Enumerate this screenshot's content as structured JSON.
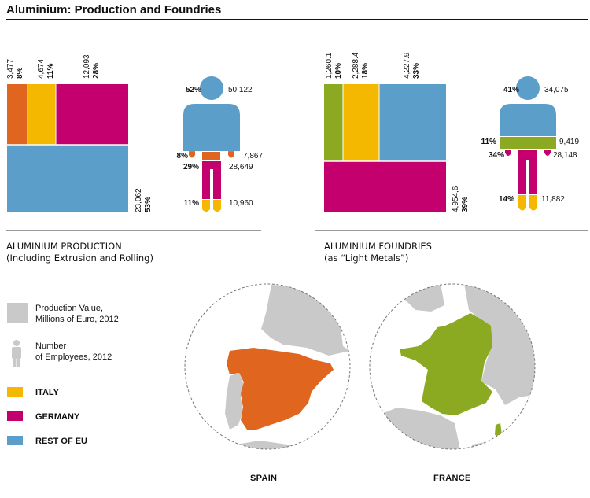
{
  "title": "Aluminium: Production and Foundries",
  "colors": {
    "italy": "#F5B800",
    "germany": "#C4006F",
    "rest_eu": "#5B9EC9",
    "spain": "#E0651E",
    "france": "#8BAA22",
    "grey": "#C9C9C9",
    "neutral": "#d0d0d0"
  },
  "panels": {
    "production": {
      "heading": "ALUMINIUM PRODUCTION",
      "subheading": "(Including Extrusion and Rolling)"
    },
    "foundries": {
      "heading": "ALUMINIUM FOUNDRIES",
      "subheading": "(as “Light Metals”)"
    }
  },
  "legend": {
    "production_value": "Production Value,\nMillions of Euro, 2012",
    "employees": "Number\nof Employees, 2012",
    "italy": "ITALY",
    "germany": "GERMANY",
    "rest_eu": "REST OF EU"
  },
  "maps": {
    "spain_label": "SPAIN",
    "france_label": "FRANCE"
  },
  "chart_data": [
    {
      "type": "treemap",
      "title": "ALUMINIUM PRODUCTION",
      "subtitle": "(Including Extrusion and Rolling)",
      "series": [
        {
          "name": "SPAIN",
          "value": "3,477",
          "share": "8%",
          "value_num": 3477,
          "color": "#E0651E"
        },
        {
          "name": "ITALY",
          "value": "4,674",
          "share": "11%",
          "value_num": 4674,
          "color": "#F5B800"
        },
        {
          "name": "GERMANY",
          "value": "12,093",
          "share": "28%",
          "value_num": 12093,
          "color": "#C4006F"
        },
        {
          "name": "REST OF EU",
          "value": "23,062",
          "share": "53%",
          "value_num": 23062,
          "color": "#5B9EC9"
        }
      ],
      "employees": [
        {
          "name": "REST OF EU",
          "share": "52%",
          "count": "50,122",
          "color": "#5B9EC9"
        },
        {
          "name": "SPAIN",
          "share": "8%",
          "count": "7,867",
          "color": "#E0651E"
        },
        {
          "name": "GERMANY",
          "share": "29%",
          "count": "28,649",
          "color": "#C4006F"
        },
        {
          "name": "ITALY",
          "share": "11%",
          "count": "10,960",
          "color": "#F5B800"
        }
      ]
    },
    {
      "type": "treemap",
      "title": "ALUMINIUM FOUNDRIES",
      "subtitle": "(as “Light Metals”)",
      "series": [
        {
          "name": "FRANCE",
          "value": "1,260.1",
          "share": "10%",
          "value_num": 1260.1,
          "color": "#8BAA22"
        },
        {
          "name": "ITALY",
          "value": "2,288.4",
          "share": "18%",
          "value_num": 2288.4,
          "color": "#F5B800"
        },
        {
          "name": "REST OF EU",
          "value": "4,227.9",
          "share": "33%",
          "value_num": 4227.9,
          "color": "#5B9EC9"
        },
        {
          "name": "GERMANY",
          "value": "4,954,6",
          "share": "39%",
          "value_num": 4954.6,
          "color": "#C4006F"
        }
      ],
      "employees": [
        {
          "name": "REST OF EU",
          "share": "41%",
          "count": "34,075",
          "color": "#5B9EC9"
        },
        {
          "name": "FRANCE",
          "share": "11%",
          "count": "9,419",
          "color": "#8BAA22"
        },
        {
          "name": "GERMANY",
          "share": "34%",
          "count": "28,148",
          "color": "#C4006F"
        },
        {
          "name": "ITALY",
          "share": "14%",
          "count": "11,882",
          "color": "#F5B800"
        }
      ]
    }
  ]
}
